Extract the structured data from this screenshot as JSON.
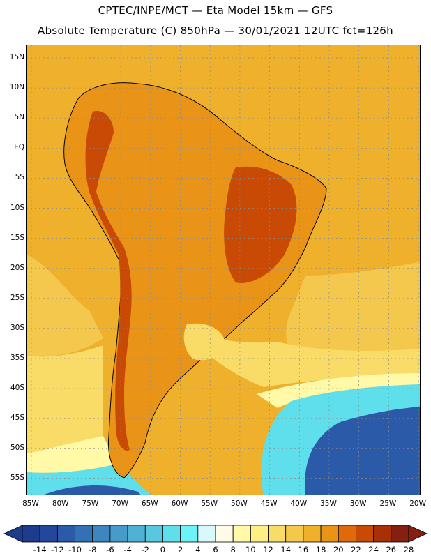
{
  "title_line1": "CPTEC/INPE/MCT —  Eta Model 15km — GFS",
  "title_line2": "Absolute Temperature (C) 850hPa — 30/01/2021 12UTC fct=126h",
  "lat_labels": [
    "15N",
    "10N",
    "5N",
    "EQ",
    "5S",
    "10S",
    "15S",
    "20S",
    "25S",
    "30S",
    "35S",
    "40S",
    "45S",
    "50S",
    "55S"
  ],
  "lon_labels": [
    "85W",
    "80W",
    "75W",
    "70W",
    "65W",
    "60W",
    "55W",
    "50W",
    "45W",
    "40W",
    "35W",
    "30W",
    "25W",
    "20W"
  ],
  "colorbar": {
    "tick_labels": [
      "-14",
      "-12",
      "-10",
      "-8",
      "-6",
      "-4",
      "-2",
      "0",
      "2",
      "4",
      "6",
      "8",
      "10",
      "12",
      "14",
      "16",
      "18",
      "20",
      "22",
      "24",
      "26",
      "28"
    ],
    "colors": [
      "#1e3c8e",
      "#24479b",
      "#2b5aa8",
      "#3471b4",
      "#3d86be",
      "#469bc9",
      "#4fb1d4",
      "#58c8df",
      "#5fdfeb",
      "#6bf3f7",
      "#d8f8fb",
      "#fffbe6",
      "#fff9a8",
      "#fdee86",
      "#f9dc68",
      "#f4c84c",
      "#efb02c",
      "#e99317",
      "#e06a0a",
      "#c94a04",
      "#a93006",
      "#852010"
    ]
  },
  "map": {
    "background_color": "#efb02c",
    "land_color": "#e99317",
    "highland_color": "#c94a04",
    "warm_ocean_color": "#f4c84c",
    "mild_ocean_color": "#f9dc68",
    "cool_ocean_color": "#fff9a8",
    "cold_ocean_color": "#5fdfeb",
    "coldest_ocean_color": "#2b5aa8"
  }
}
